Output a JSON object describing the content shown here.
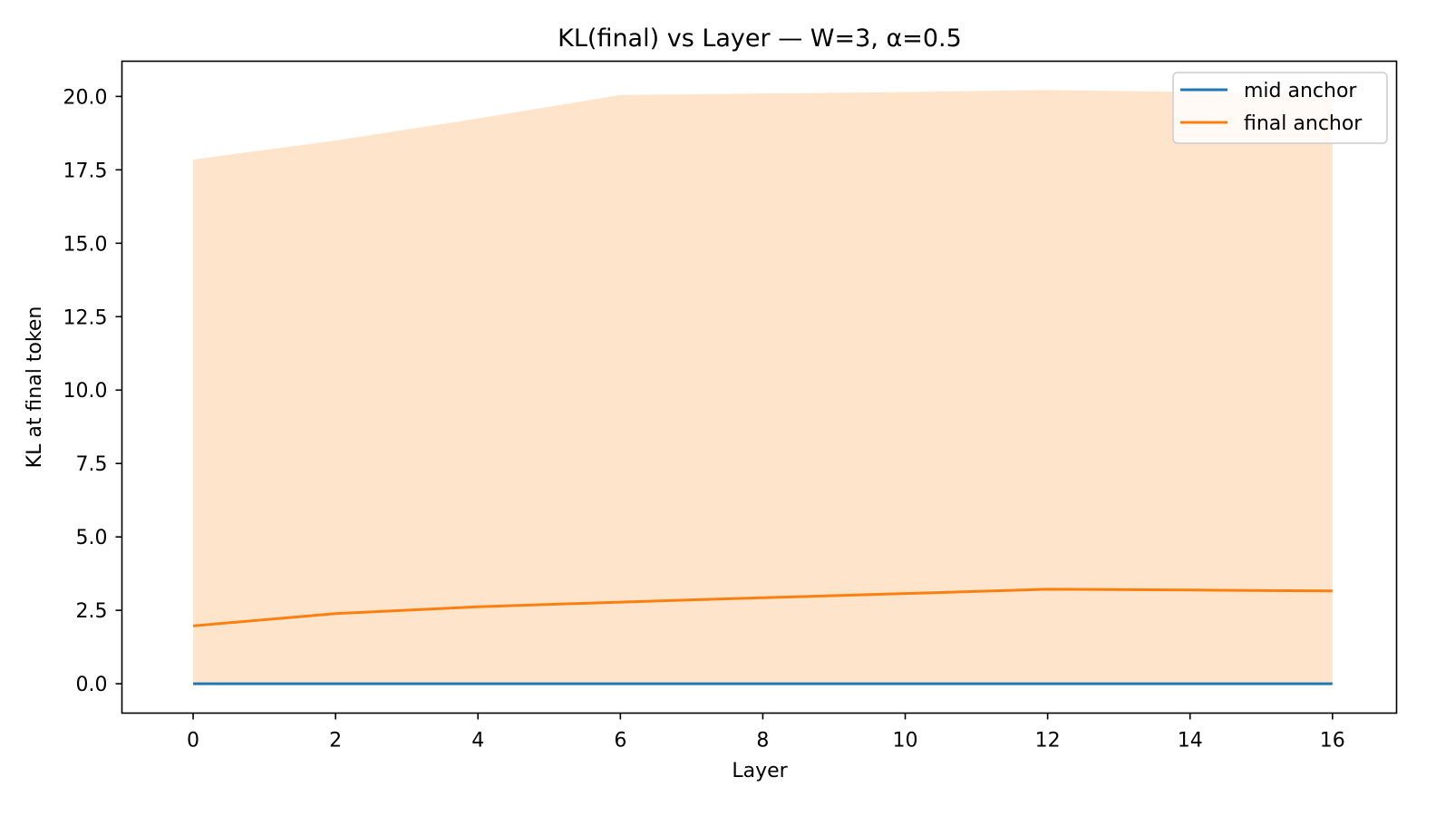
{
  "chart_data": {
    "type": "line",
    "title": "KL(final) vs Layer — W=3, α=0.5",
    "xlabel": "Layer",
    "ylabel": "KL at final token",
    "xlim": [
      -1,
      16.9
    ],
    "ylim": [
      -1.0,
      21.2
    ],
    "xticks": [
      0,
      2,
      4,
      6,
      8,
      10,
      12,
      14,
      16
    ],
    "xtick_labels": [
      "0",
      "2",
      "4",
      "6",
      "8",
      "10",
      "12",
      "14",
      "16"
    ],
    "yticks": [
      0.0,
      2.5,
      5.0,
      7.5,
      10.0,
      12.5,
      15.0,
      17.5,
      20.0
    ],
    "ytick_labels": [
      "0.0",
      "2.5",
      "5.0",
      "7.5",
      "10.0",
      "12.5",
      "15.0",
      "17.5",
      "20.0"
    ],
    "grid": false,
    "legend_position": "top-right",
    "x": [
      0,
      2,
      4,
      6,
      8,
      10,
      12,
      14,
      16
    ],
    "series": [
      {
        "name": "mid anchor",
        "color": "#1f77b4",
        "values": [
          0.0,
          0.0,
          0.0,
          0.0,
          0.0,
          0.0,
          0.0,
          0.0,
          0.0
        ]
      },
      {
        "name": "final anchor",
        "color": "#ff7f0e",
        "values": [
          1.97,
          2.39,
          2.62,
          2.78,
          2.93,
          3.07,
          3.22,
          3.19,
          3.16
        ],
        "band_lower": [
          0.0,
          0.0,
          0.0,
          0.0,
          0.0,
          0.0,
          0.0,
          0.0,
          0.0
        ],
        "band_upper": [
          17.85,
          18.5,
          19.25,
          20.05,
          20.1,
          20.15,
          20.22,
          20.15,
          20.1
        ],
        "band_color": "#ffe4cc"
      }
    ]
  }
}
